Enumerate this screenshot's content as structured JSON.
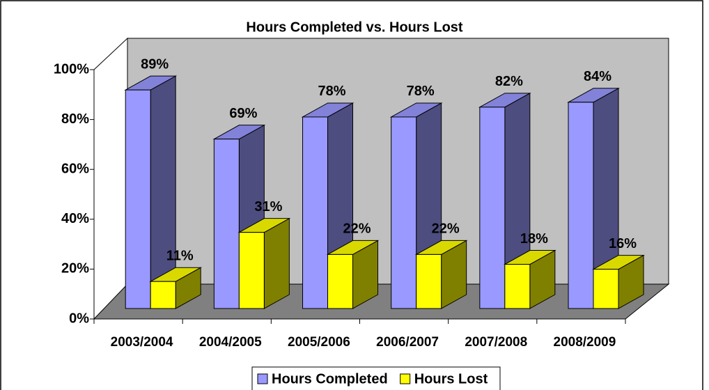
{
  "chart_data": {
    "type": "bar3d",
    "title": "Hours Completed vs. Hours Lost",
    "categories": [
      "2003/2004",
      "2004/2005",
      "2005/2006",
      "2006/2007",
      "2007/2008",
      "2008/2009"
    ],
    "series": [
      {
        "name": "Hours Completed",
        "color": "#9999ff",
        "values": [
          89,
          69,
          78,
          78,
          82,
          84
        ],
        "value_labels": [
          "89%",
          "69%",
          "78%",
          "78%",
          "82%",
          "84%"
        ]
      },
      {
        "name": "Hours Lost",
        "color": "#ffff00",
        "values": [
          11,
          31,
          22,
          22,
          18,
          16
        ],
        "value_labels": [
          "11%",
          "31%",
          "22%",
          "22%",
          "18%",
          "16%"
        ]
      }
    ],
    "ylim": [
      0,
      100
    ],
    "yticks": [
      {
        "value": 0,
        "label": "0%"
      },
      {
        "value": 20,
        "label": "20%"
      },
      {
        "value": 40,
        "label": "40%"
      },
      {
        "value": 60,
        "label": "60%"
      },
      {
        "value": 80,
        "label": "80%"
      },
      {
        "value": 100,
        "label": "100%"
      }
    ],
    "legend": "bottom"
  }
}
